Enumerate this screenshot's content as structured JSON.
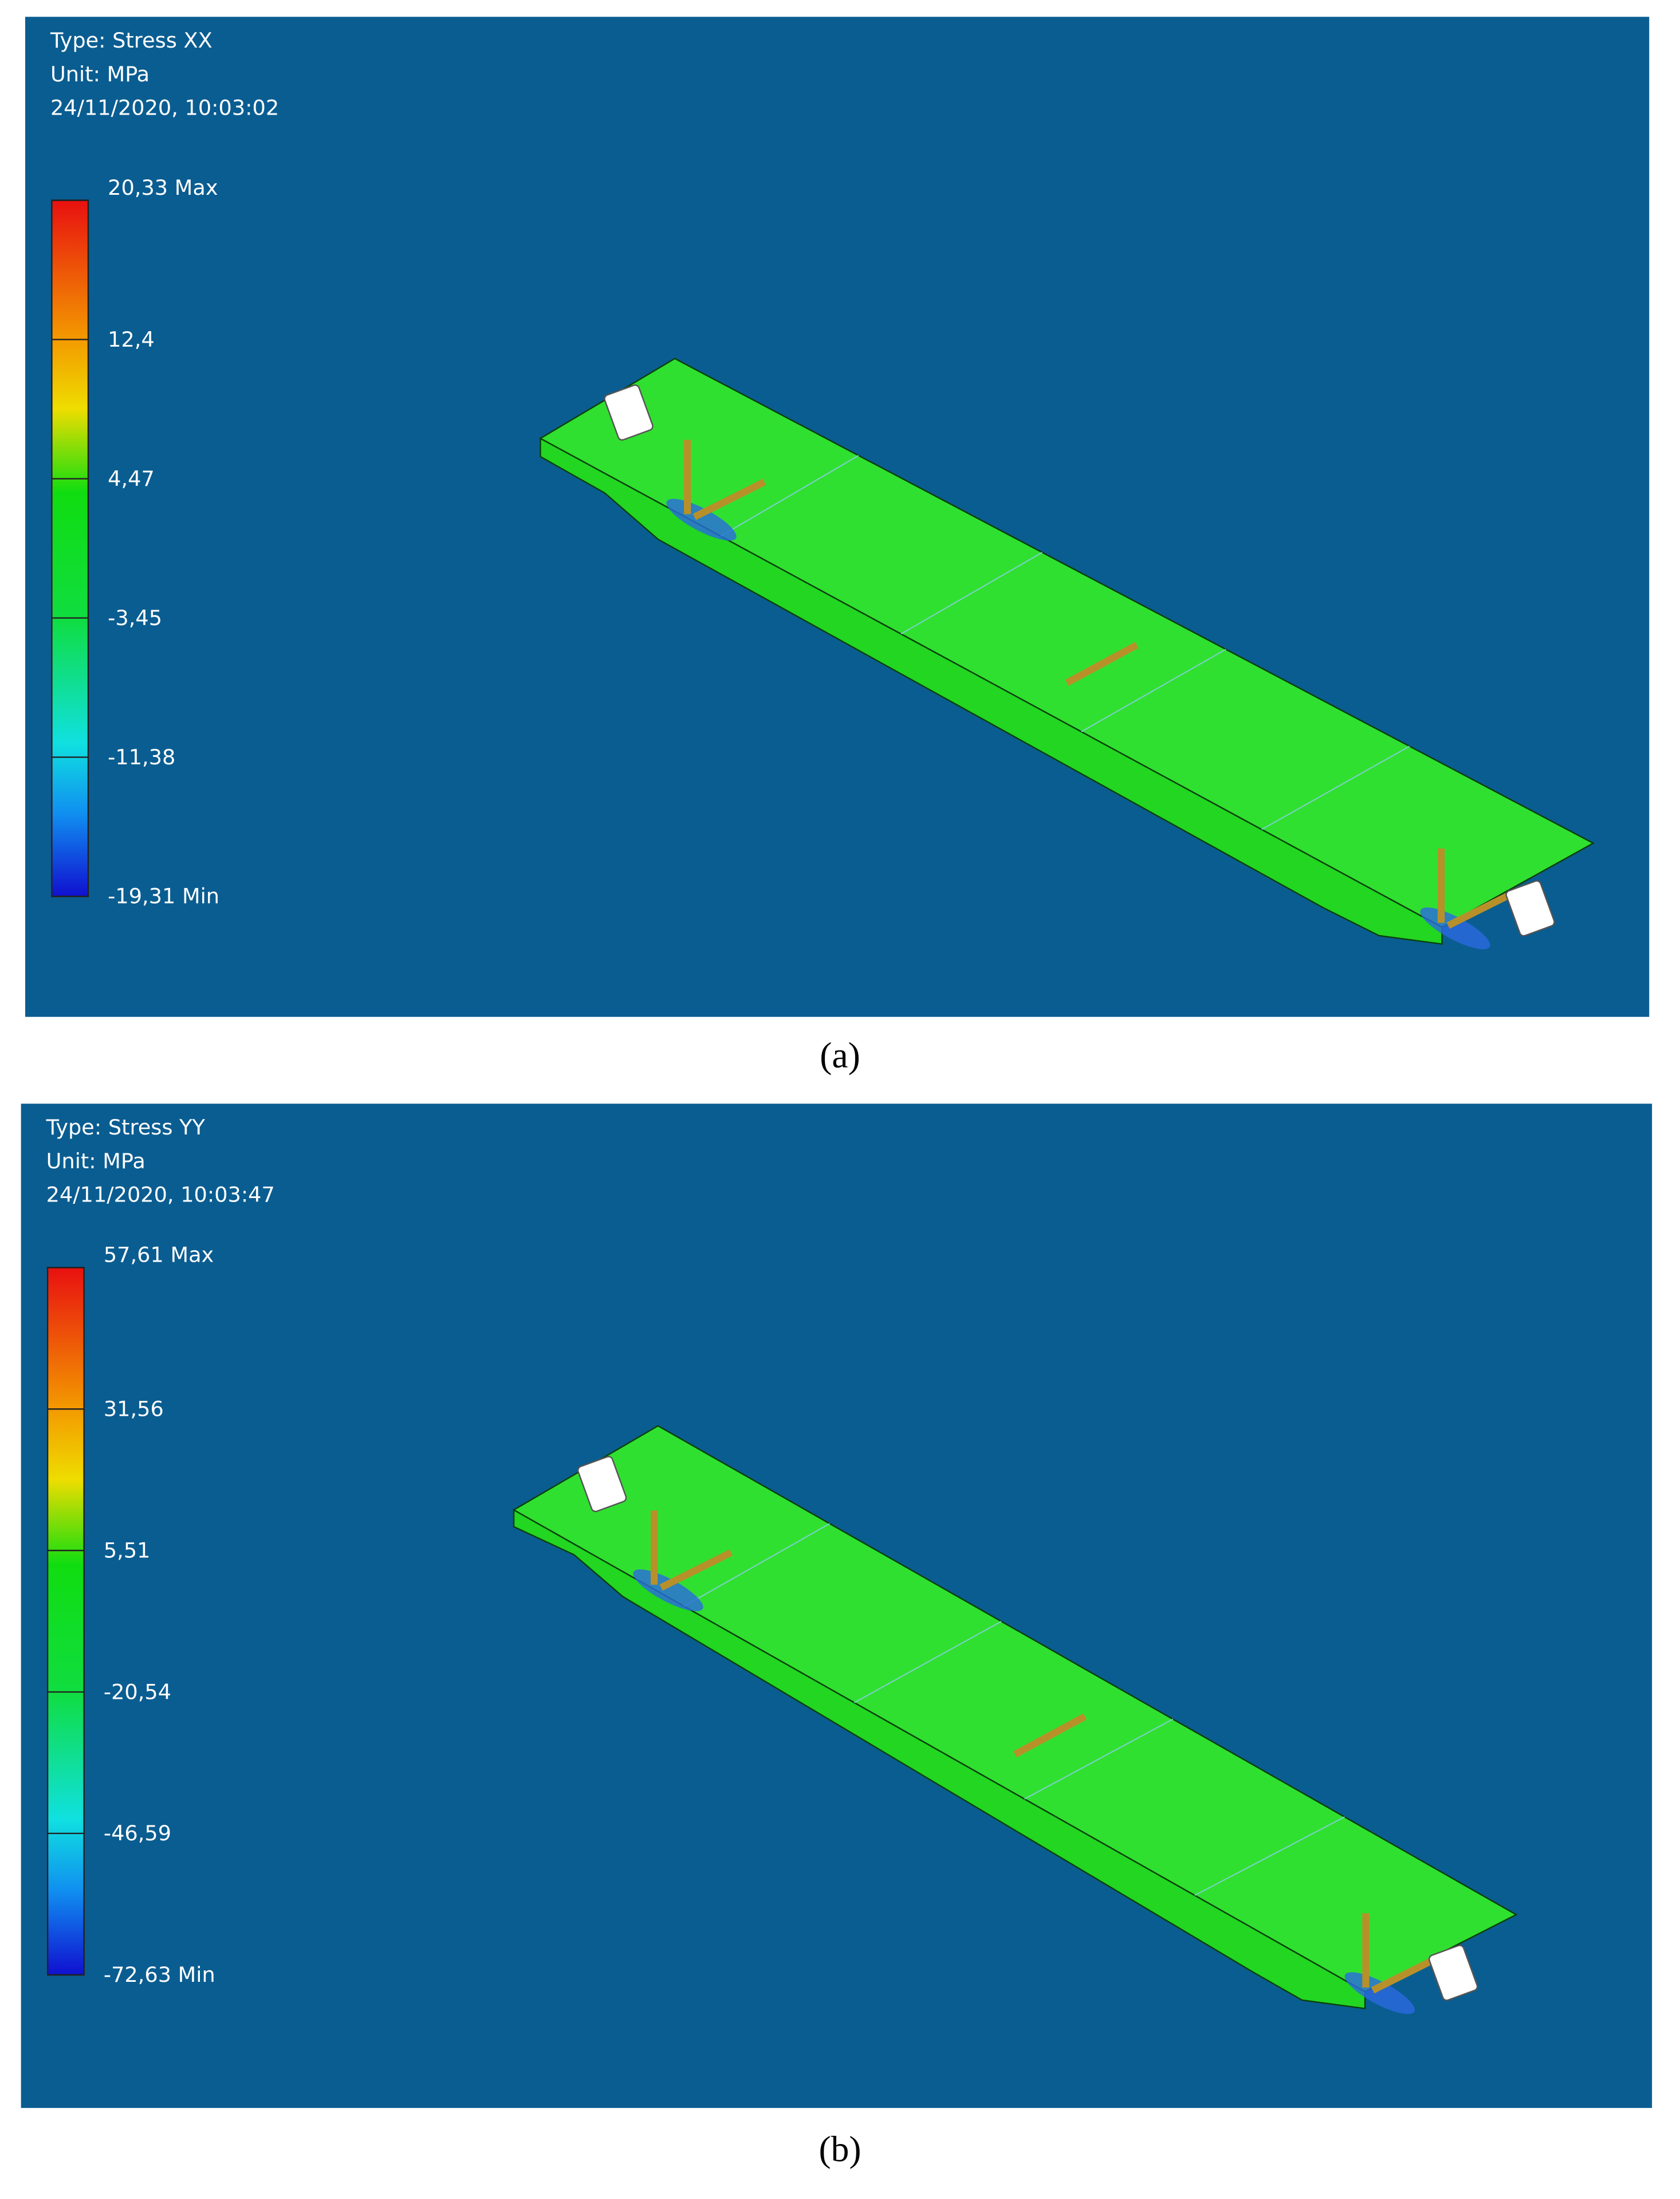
{
  "panels": [
    {
      "type_label": "Type: Stress XX",
      "unit_label": "Unit: MPa",
      "timestamp": "24/11/2020, 10:03:02",
      "legend_labels": [
        "20,33 Max",
        "12,4",
        "4,47",
        "-3,45",
        "-11,38",
        "-19,31 Min"
      ],
      "caption": "(a)"
    },
    {
      "type_label": "Type: Stress YY",
      "unit_label": "Unit: MPa",
      "timestamp": "24/11/2020, 10:03:47",
      "legend_labels": [
        "57,61 Max",
        "31,56",
        "5,51",
        "-20,54",
        "-46,59",
        "-72,63 Min"
      ],
      "caption": "(b)"
    }
  ]
}
